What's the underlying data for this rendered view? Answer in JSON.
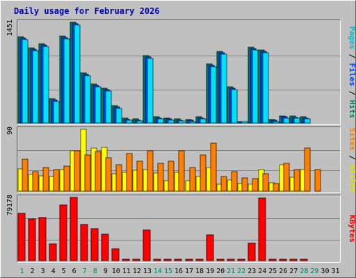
{
  "chart_data": {
    "type": "bar",
    "title": "Daily usage for February 2026",
    "days": [
      1,
      2,
      3,
      4,
      5,
      6,
      7,
      8,
      9,
      10,
      11,
      12,
      13,
      14,
      15,
      16,
      17,
      18,
      19,
      20,
      21,
      22,
      23,
      24,
      25,
      26,
      27,
      28,
      29,
      30,
      31
    ],
    "weekend_days": [
      1,
      7,
      8,
      14,
      15,
      21,
      22,
      28,
      29
    ],
    "panels": [
      {
        "id": "hits-files-pages",
        "max_label": "1451",
        "ylim": [
          0,
          1451
        ],
        "side_label": [
          {
            "text": "Pages",
            "color": "#00c0d0"
          },
          {
            "text": " / ",
            "color": "#000000"
          },
          {
            "text": "Files",
            "color": "#0040ff"
          },
          {
            "text": " / ",
            "color": "#000000"
          },
          {
            "text": "Hits",
            "color": "#00805c"
          }
        ],
        "series": [
          {
            "name": "Hits",
            "color": "#00805c",
            "values": [
              1240,
              1080,
              1140,
              350,
              1250,
              1450,
              720,
              560,
              500,
              250,
              70,
              60,
              970,
              90,
              75,
              60,
              55,
              90,
              850,
              1030,
              520,
              25,
              1090,
              1050,
              55,
              105,
              100,
              90,
              null,
              null,
              null
            ]
          },
          {
            "name": "Files",
            "color": "#0040ff",
            "values": [
              1220,
              1060,
              1120,
              330,
              1230,
              1430,
              700,
              540,
              480,
              230,
              55,
              45,
              950,
              75,
              60,
              45,
              40,
              75,
              830,
              1010,
              500,
              15,
              1070,
              1030,
              40,
              90,
              85,
              75,
              null,
              null,
              null
            ]
          },
          {
            "name": "Pages",
            "color": "#00e0ff",
            "values": [
              1200,
              1040,
              1100,
              310,
              1210,
              1410,
              680,
              520,
              460,
              210,
              40,
              30,
              930,
              60,
              45,
              30,
              25,
              60,
              810,
              990,
              480,
              8,
              1050,
              1010,
              25,
              75,
              70,
              60,
              null,
              null,
              null
            ]
          }
        ]
      },
      {
        "id": "visits-sites",
        "max_label": "90",
        "ylim": [
          0,
          90
        ],
        "side_label": [
          {
            "text": "Sites",
            "color": "#ff8000"
          },
          {
            "text": " / ",
            "color": "#000000"
          },
          {
            "text": "Visits",
            "color": "#e0e000"
          }
        ],
        "series": [
          {
            "name": "Visits",
            "color": "#ffff00",
            "values": [
              32,
              24,
              22,
              21,
              31,
              59,
              90,
              63,
              64,
              25,
              27,
              30,
              31,
              26,
              15,
              27,
              15,
              21,
              34,
              10,
              16,
              11,
              10,
              31,
              12,
              38,
              20,
              31,
              null,
              null,
              null
            ]
          },
          {
            "name": "Sites",
            "color": "#ff8000",
            "values": [
              47,
              28,
              34,
              31,
              36,
              59,
              53,
              58,
              49,
              38,
              55,
              43,
              59,
              40,
              43,
              59,
              34,
              53,
              70,
              21,
              28,
              19,
              18,
              25,
              11,
              40,
              31,
              63,
              31,
              null,
              null
            ]
          }
        ]
      },
      {
        "id": "kbytes",
        "max_label": "79178",
        "ylim": [
          0,
          79178
        ],
        "side_label": [
          {
            "text": "KBytes",
            "color": "#ff0000"
          }
        ],
        "series": [
          {
            "name": "KBytes",
            "color": "#ff0000",
            "values": [
              59600,
              51800,
              54000,
              20600,
              69800,
              79178,
              45200,
              40200,
              32900,
              14400,
              800,
              1600,
              38600,
              1400,
              900,
              900,
              900,
              900,
              31800,
              1800,
              900,
              600,
              21600,
              78200,
              900,
              1400,
              1100,
              900,
              null,
              null,
              null
            ]
          }
        ]
      }
    ]
  }
}
